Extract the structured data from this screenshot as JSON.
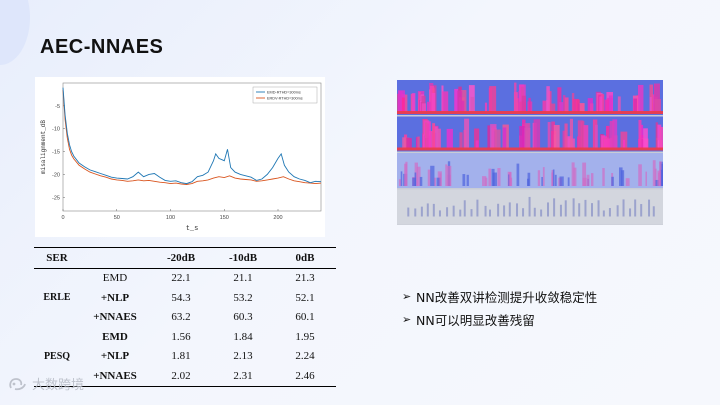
{
  "slide": {
    "title": "AEC-NNAES",
    "watermark_text": "大数跨境"
  },
  "chart_data": {
    "type": "line",
    "ylabel": "misalignment_dB",
    "xlabel": "t_s",
    "x_ticks": [
      0,
      50,
      100,
      150,
      200
    ],
    "y_ticks": [
      -5,
      -10,
      -15,
      -20,
      -25
    ],
    "xlim": [
      0,
      240
    ],
    "ylim": [
      -28,
      0
    ],
    "legend_position": "top-right",
    "series": [
      {
        "name": "EMD-RTHD=300ms",
        "color": "#1f77b4",
        "x": [
          0,
          2,
          4,
          6,
          8,
          10,
          15,
          20,
          25,
          30,
          35,
          40,
          45,
          50,
          55,
          60,
          65,
          70,
          75,
          80,
          85,
          90,
          95,
          100,
          105,
          110,
          115,
          120,
          125,
          130,
          135,
          140,
          142,
          145,
          150,
          153,
          156,
          160,
          165,
          170,
          175,
          180,
          185,
          190,
          195,
          200,
          203,
          206,
          210,
          215,
          220,
          225,
          230,
          235,
          240
        ],
        "y": [
          -1,
          -7,
          -11,
          -13.5,
          -15,
          -16,
          -17.5,
          -18.3,
          -19,
          -19.4,
          -19.8,
          -20.2,
          -20.6,
          -20.8,
          -20.9,
          -21,
          -20.5,
          -19.5,
          -20.5,
          -20,
          -19.8,
          -20.6,
          -21.3,
          -21.5,
          -21.4,
          -21.8,
          -22,
          -21.6,
          -20.5,
          -20.2,
          -19.5,
          -17,
          -15.5,
          -16.5,
          -17,
          -14.5,
          -18.5,
          -19.5,
          -20,
          -20.3,
          -20.6,
          -21.3,
          -21,
          -20,
          -18.5,
          -16.5,
          -15.5,
          -18,
          -19.5,
          -20.5,
          -21,
          -21.3,
          -21.8,
          -21.5,
          -21.6
        ]
      },
      {
        "name": "ERDV-RTHD=300ms",
        "color": "#d9541e",
        "x": [
          0,
          2,
          4,
          6,
          8,
          10,
          15,
          20,
          25,
          30,
          35,
          40,
          45,
          50,
          55,
          60,
          65,
          70,
          75,
          80,
          85,
          90,
          95,
          100,
          105,
          110,
          115,
          120,
          125,
          130,
          135,
          140,
          145,
          150,
          155,
          160,
          165,
          170,
          175,
          180,
          185,
          190,
          195,
          200,
          205,
          210,
          215,
          220,
          225,
          230,
          235,
          240
        ],
        "y": [
          -1.5,
          -8,
          -12,
          -14.5,
          -15.8,
          -16.6,
          -18,
          -18.8,
          -19.5,
          -19.9,
          -20.3,
          -20.6,
          -21,
          -21.2,
          -21.3,
          -21.5,
          -21.4,
          -21.2,
          -21.4,
          -21.3,
          -21.5,
          -21.7,
          -21.8,
          -22,
          -21.9,
          -22.1,
          -22.2,
          -22,
          -21.5,
          -21.4,
          -21.2,
          -20.8,
          -20.5,
          -20.7,
          -20.3,
          -20.8,
          -21,
          -21.1,
          -21.2,
          -21.5,
          -21.4,
          -21.2,
          -21,
          -20.8,
          -20.5,
          -21,
          -21.4,
          -21.6,
          -21.8,
          -21.9,
          -22,
          -21.9
        ]
      }
    ]
  },
  "spectrogram": {
    "panels": 4,
    "panel_styles": [
      "pink-dense",
      "pink-dense",
      "blue-sparse",
      "gray-bars"
    ]
  },
  "table": {
    "headers": [
      "SER",
      "",
      "-20dB",
      "-10dB",
      "0dB"
    ],
    "groups": [
      {
        "name": "ERLE",
        "rows": [
          {
            "label": "EMD",
            "values": [
              "22.1",
              "21.1",
              "21.3"
            ],
            "bold_label": false
          },
          {
            "label": "+NLP",
            "values": [
              "54.3",
              "53.2",
              "52.1"
            ],
            "bold_label": true
          },
          {
            "label": "+NNAES",
            "values": [
              "63.2",
              "60.3",
              "60.1"
            ],
            "bold_label": true
          }
        ]
      },
      {
        "name": "PESQ",
        "rows": [
          {
            "label": "EMD",
            "values": [
              "1.56",
              "1.84",
              "1.95"
            ],
            "bold_label": true
          },
          {
            "label": "+NLP",
            "values": [
              "1.81",
              "2.13",
              "2.24"
            ],
            "bold_label": true
          },
          {
            "label": "+NNAES",
            "values": [
              "2.02",
              "2.31",
              "2.46"
            ],
            "bold_label": true
          }
        ]
      }
    ]
  },
  "bullets": [
    {
      "arrow": "➢",
      "text": "NN改善双讲检测提升收敛稳定性"
    },
    {
      "arrow": "➢",
      "text": "NN可以明显改善残留"
    }
  ]
}
